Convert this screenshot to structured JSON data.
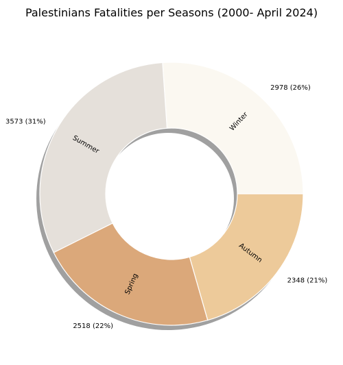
{
  "chart_data": {
    "type": "pie",
    "variant": "donut",
    "title": "Palestinians Fatalities per Seasons (2000- April 2024)",
    "start_angle_deg": 0,
    "direction": "counterclockwise",
    "shadow": true,
    "colors": {
      "Winter": "#fbf8f1",
      "Summer": "#e5e0da",
      "Spring": "#dba87a",
      "Autumn": "#edca9a",
      "edge": "#ffffff",
      "shadow": "#8f8f8f"
    },
    "slices": [
      {
        "label": "Winter",
        "value": 2978,
        "value_label": "2978 (26%)"
      },
      {
        "label": "Summer",
        "value": 3573,
        "value_label": "3573 (31%)"
      },
      {
        "label": "Spring",
        "value": 2518,
        "value_label": "2518 (22%)"
      },
      {
        "label": "Autumn",
        "value": 2348,
        "value_label": "2348 (21%)"
      }
    ]
  }
}
